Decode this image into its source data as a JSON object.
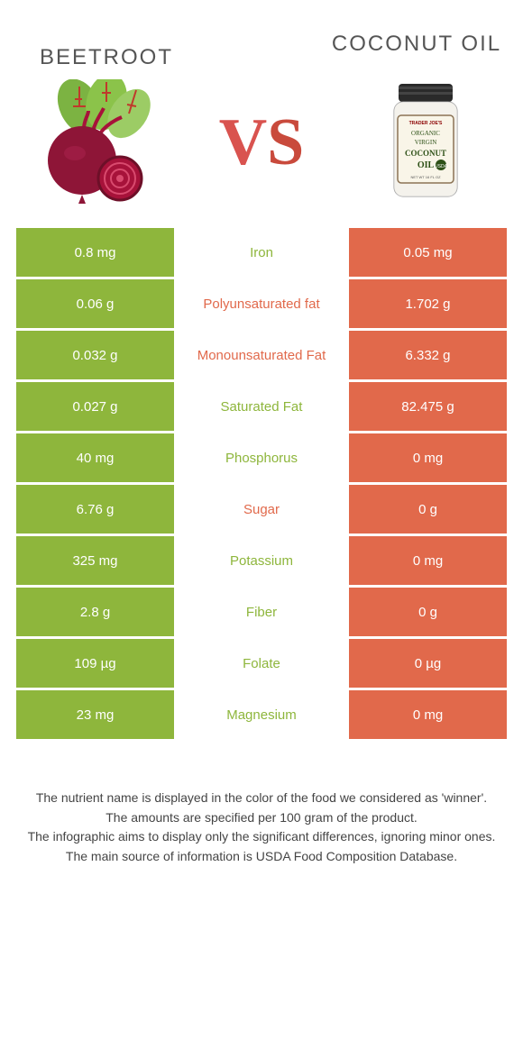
{
  "colors": {
    "beet": "#8eb63c",
    "coconut": "#e1694b",
    "beet_label": "#8eb63c",
    "coconut_label": "#e1694b",
    "title_text": "#555555"
  },
  "header": {
    "left_title": "Beetroot",
    "right_title": "Coconut oil",
    "vs_v": "V",
    "vs_s": "S"
  },
  "jar_label": {
    "brand": "TRADER JOE'S",
    "l1": "ORGANIC",
    "l2": "VIRGIN",
    "l3": "COCONUT",
    "l4": "OIL",
    "net": "NET WT 16 FL OZ"
  },
  "rows": [
    {
      "left": "0.8 mg",
      "label": "Iron",
      "right": "0.05 mg",
      "winner": "beet"
    },
    {
      "left": "0.06 g",
      "label": "Polyunsaturated fat",
      "right": "1.702 g",
      "winner": "coconut"
    },
    {
      "left": "0.032 g",
      "label": "Monounsaturated Fat",
      "right": "6.332 g",
      "winner": "coconut"
    },
    {
      "left": "0.027 g",
      "label": "Saturated Fat",
      "right": "82.475 g",
      "winner": "beet"
    },
    {
      "left": "40 mg",
      "label": "Phosphorus",
      "right": "0 mg",
      "winner": "beet"
    },
    {
      "left": "6.76 g",
      "label": "Sugar",
      "right": "0 g",
      "winner": "coconut"
    },
    {
      "left": "325 mg",
      "label": "Potassium",
      "right": "0 mg",
      "winner": "beet"
    },
    {
      "left": "2.8 g",
      "label": "Fiber",
      "right": "0 g",
      "winner": "beet"
    },
    {
      "left": "109 µg",
      "label": "Folate",
      "right": "0 µg",
      "winner": "beet"
    },
    {
      "left": "23 mg",
      "label": "Magnesium",
      "right": "0 mg",
      "winner": "beet"
    }
  ],
  "footnotes": [
    "The nutrient name is displayed in the color of the food we considered as 'winner'.",
    "The amounts are specified per 100 gram of the product.",
    "The infographic aims to display only the significant differences, ignoring minor ones.",
    "The main source of information is USDA Food Composition Database."
  ]
}
